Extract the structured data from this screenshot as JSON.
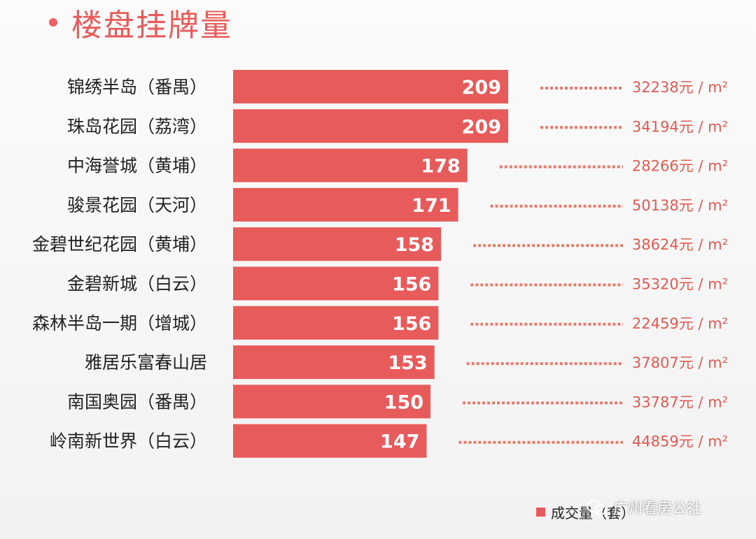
{
  "title": "楼盘挂牌量",
  "accent_color": "#e85b5b",
  "dot_color": "#f06060",
  "legend": {
    "label": "成交量（套）"
  },
  "watermark": {
    "text": "广州看房公社",
    "icon": "wechat-icon"
  },
  "chart_data": {
    "type": "bar",
    "orientation": "horizontal",
    "categories": [
      "锦绣半岛（番禺）",
      "珠岛花园（荔湾）",
      "中海誉城（黄埔）",
      "骏景花园（天河）",
      "金碧世纪花园（黄埔）",
      "金碧新城（白云）",
      "森林半岛一期（增城）",
      "雅居乐富春山居",
      "南国奥园（番禺）",
      "岭南新世界（白云）"
    ],
    "series": [
      {
        "name": "成交量（套）",
        "values": [
          209,
          209,
          178,
          171,
          158,
          156,
          156,
          153,
          150,
          147
        ]
      }
    ],
    "price_annotations": [
      "32238元 / m²",
      "34194元 / m²",
      "28266元 / m²",
      "50138元 / m²",
      "38624元 / m²",
      "35320元 / m²",
      "22459元 / m²",
      "37807元 / m²",
      "33787元 / m²",
      "44859元 / m²"
    ],
    "xlim": [
      0,
      209
    ],
    "legend_position": "bottom-right",
    "grid": false
  }
}
